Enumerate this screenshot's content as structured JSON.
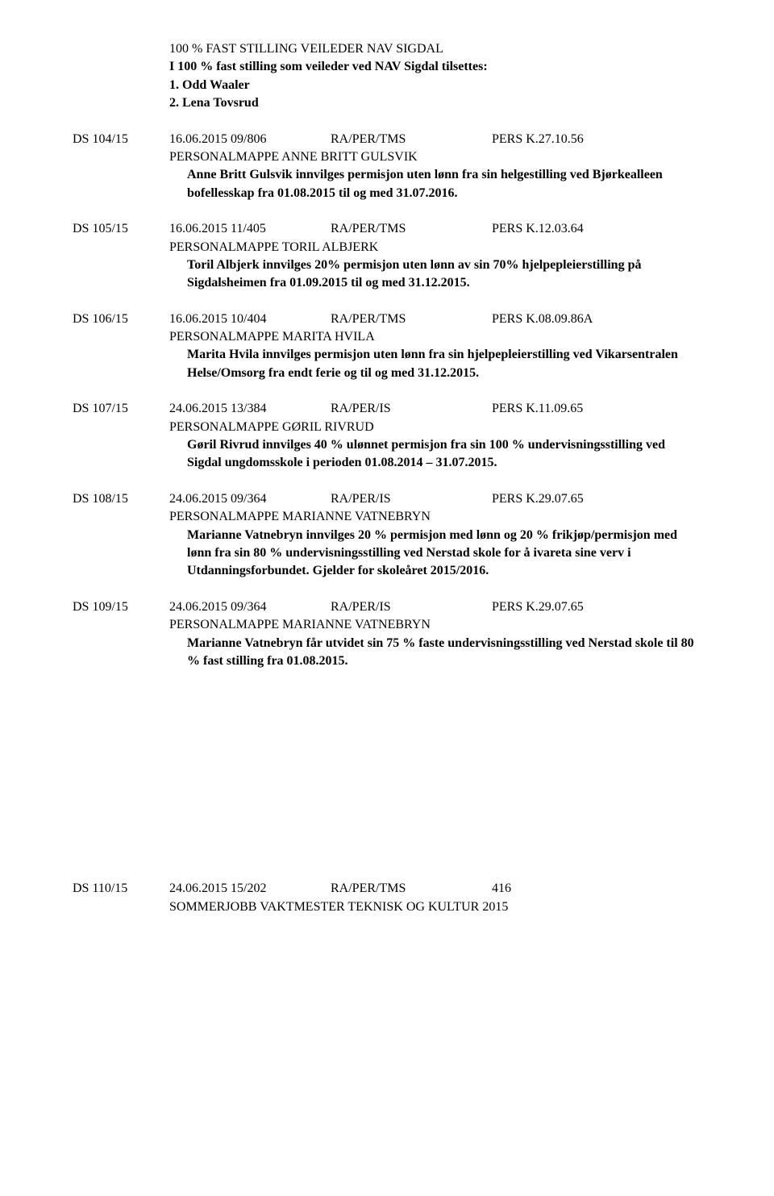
{
  "heading": {
    "line1": "100 % FAST STILLING VEILEDER NAV SIGDAL",
    "line2": "I 100 % fast stilling som veileder ved NAV Sigdal tilsettes:",
    "line3": "1. Odd Waaler",
    "line4": "2. Lena Tovsrud"
  },
  "entries": [
    {
      "ds": "DS  104/15",
      "date": "16.06.2015    09/806",
      "code": "RA/PER/TMS",
      "pers": "PERS K.27.10.56",
      "mappe": "PERSONALMAPPE ANNE BRITT GULSVIK",
      "details": [
        "Anne Britt Gulsvik innvilges permisjon uten lønn fra sin helgestilling ved Bjørkealleen bofellesskap fra 01.08.2015 til og med 31.07.2016."
      ]
    },
    {
      "ds": "DS  105/15",
      "date": "16.06.2015    11/405",
      "code": "RA/PER/TMS",
      "pers": "PERS K.12.03.64",
      "mappe": "PERSONALMAPPE TORIL ALBJERK",
      "details": [
        "Toril Albjerk innvilges 20% permisjon uten lønn av sin 70% hjelpepleierstilling på Sigdalsheimen fra 01.09.2015 til og med 31.12.2015."
      ]
    },
    {
      "ds": "DS  106/15",
      "date": "16.06.2015    10/404",
      "code": "RA/PER/TMS",
      "pers": "PERS K.08.09.86A",
      "mappe": "PERSONALMAPPE MARITA HVILA",
      "details": [
        "Marita Hvila innvilges permisjon uten lønn fra sin hjelpepleierstilling ved Vikarsentralen Helse/Omsorg fra endt ferie og til og med 31.12.2015."
      ]
    },
    {
      "ds": "DS  107/15",
      "date": "24.06.2015    13/384",
      "code": "RA/PER/IS",
      "pers": "PERS K.11.09.65",
      "mappe": "PERSONALMAPPE GØRIL RIVRUD",
      "details": [
        "Gøril Rivrud innvilges 40 % ulønnet permisjon fra sin 100 % undervisningsstilling ved Sigdal ungdomsskole i perioden 01.08.2014 – 31.07.2015."
      ]
    },
    {
      "ds": "DS  108/15",
      "date": "24.06.2015    09/364",
      "code": "RA/PER/IS",
      "pers": "PERS K.29.07.65",
      "mappe": "PERSONALMAPPE MARIANNE VATNEBRYN",
      "details": [
        "Marianne Vatnebryn innvilges 20 % permisjon med lønn og 20 % frikjøp/permisjon med lønn fra sin 80 % undervisningsstilling ved Nerstad skole for å ivareta sine verv i Utdanningsforbundet. Gjelder for skoleåret 2015/2016."
      ]
    },
    {
      "ds": "DS  109/15",
      "date": "24.06.2015    09/364",
      "code": "RA/PER/IS",
      "pers": "PERS K.29.07.65",
      "mappe": "PERSONALMAPPE MARIANNE VATNEBRYN",
      "details": [
        "Marianne Vatnebryn får utvidet sin 75 % faste undervisningsstilling ved Nerstad skole til 80 % fast stilling fra 01.08.2015."
      ]
    }
  ],
  "last_entry": {
    "ds": "DS  110/15",
    "date": "24.06.2015    15/202",
    "code": "RA/PER/TMS",
    "pers": "416",
    "mappe": "SOMMERJOBB VAKTMESTER TEKNISK OG KULTUR 2015"
  }
}
